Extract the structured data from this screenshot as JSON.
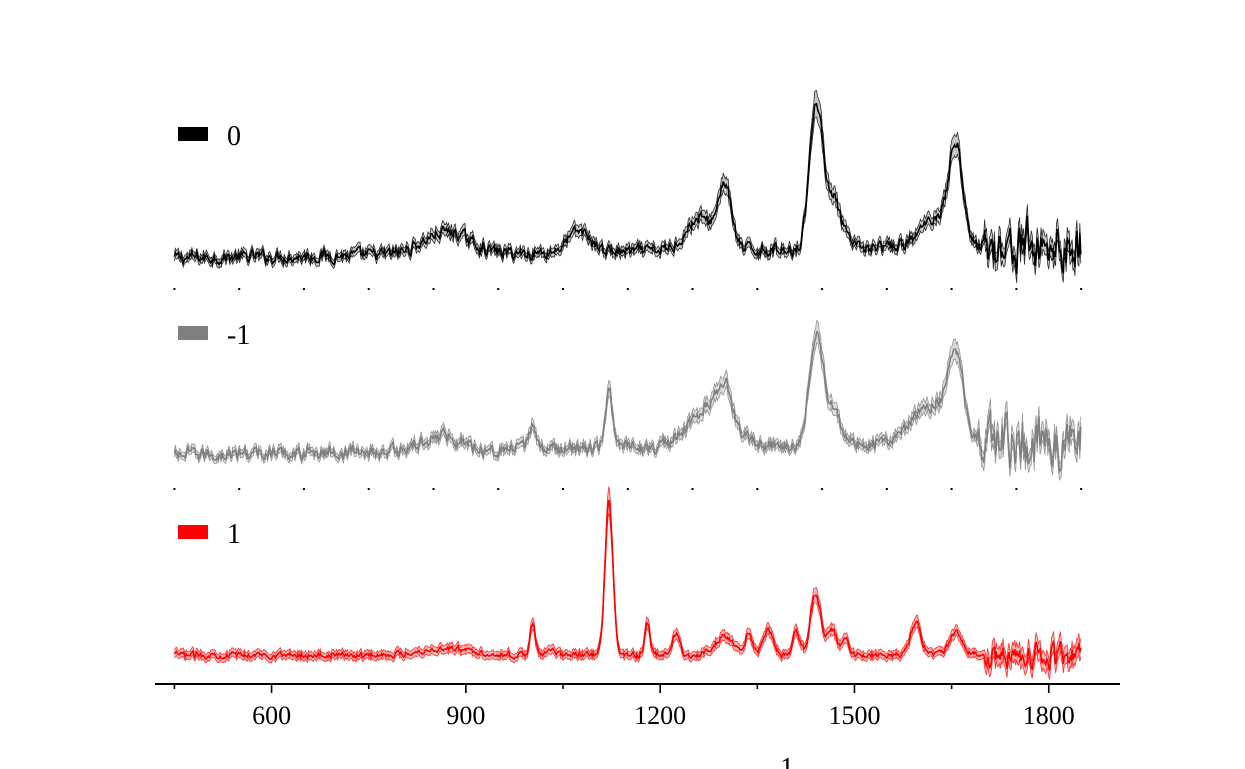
{
  "chart_data": {
    "type": "line",
    "layout": "stacked-panels",
    "xlim": [
      420,
      1910
    ],
    "x_ticks": [
      600,
      900,
      1200,
      1500,
      1800
    ],
    "x_tick_labels": [
      "600",
      "900",
      "1200",
      "1500",
      "1800"
    ],
    "xlabel_visible_fragment": "1",
    "band": "shaded mean ± deviation",
    "series": [
      {
        "name": "0",
        "color": "#000000",
        "band_color": "#b4b4b4",
        "x_range": [
          450,
          1850
        ],
        "peaks": [
          {
            "x": 870,
            "h": 0.14,
            "w": 35
          },
          {
            "x": 1075,
            "h": 0.13,
            "w": 18
          },
          {
            "x": 1262,
            "h": 0.2,
            "w": 22
          },
          {
            "x": 1300,
            "h": 0.38,
            "w": 10
          },
          {
            "x": 1440,
            "h": 0.85,
            "w": 10
          },
          {
            "x": 1465,
            "h": 0.32,
            "w": 14
          },
          {
            "x": 1657,
            "h": 0.55,
            "w": 10
          },
          {
            "x": 1630,
            "h": 0.2,
            "w": 25
          }
        ],
        "noise_amplitude": 0.03,
        "noisy_tail_from": 1700,
        "slope": 0.08
      },
      {
        "name": "-1",
        "color": "#808080",
        "band_color": "#d0d0d0",
        "x_range": [
          450,
          1850
        ],
        "peaks": [
          {
            "x": 865,
            "h": 0.1,
            "w": 30
          },
          {
            "x": 1003,
            "h": 0.18,
            "w": 5
          },
          {
            "x": 1121,
            "h": 0.35,
            "w": 6
          },
          {
            "x": 1280,
            "h": 0.28,
            "w": 30
          },
          {
            "x": 1300,
            "h": 0.22,
            "w": 10
          },
          {
            "x": 1440,
            "h": 0.68,
            "w": 10
          },
          {
            "x": 1465,
            "h": 0.25,
            "w": 14
          },
          {
            "x": 1657,
            "h": 0.5,
            "w": 12
          },
          {
            "x": 1620,
            "h": 0.25,
            "w": 30
          }
        ],
        "noise_amplitude": 0.035,
        "noisy_tail_from": 1690,
        "slope": 0.1
      },
      {
        "name": "1",
        "color": "#ff0000",
        "band_color": "#f4a0a0",
        "x_range": [
          450,
          1850
        ],
        "peaks": [
          {
            "x": 870,
            "h": 0.04,
            "w": 40
          },
          {
            "x": 1003,
            "h": 0.2,
            "w": 4
          },
          {
            "x": 1033,
            "h": 0.05,
            "w": 5
          },
          {
            "x": 1121,
            "h": 0.95,
            "w": 6
          },
          {
            "x": 1180,
            "h": 0.2,
            "w": 4
          },
          {
            "x": 1225,
            "h": 0.13,
            "w": 6
          },
          {
            "x": 1300,
            "h": 0.12,
            "w": 14
          },
          {
            "x": 1337,
            "h": 0.12,
            "w": 5
          },
          {
            "x": 1367,
            "h": 0.15,
            "w": 8
          },
          {
            "x": 1410,
            "h": 0.14,
            "w": 5
          },
          {
            "x": 1440,
            "h": 0.38,
            "w": 8
          },
          {
            "x": 1465,
            "h": 0.15,
            "w": 8
          },
          {
            "x": 1487,
            "h": 0.1,
            "w": 5
          },
          {
            "x": 1595,
            "h": 0.2,
            "w": 8
          },
          {
            "x": 1657,
            "h": 0.14,
            "w": 10
          }
        ],
        "noise_amplitude": 0.015,
        "noisy_tail_from": 1700,
        "slope": 0.0
      }
    ]
  }
}
